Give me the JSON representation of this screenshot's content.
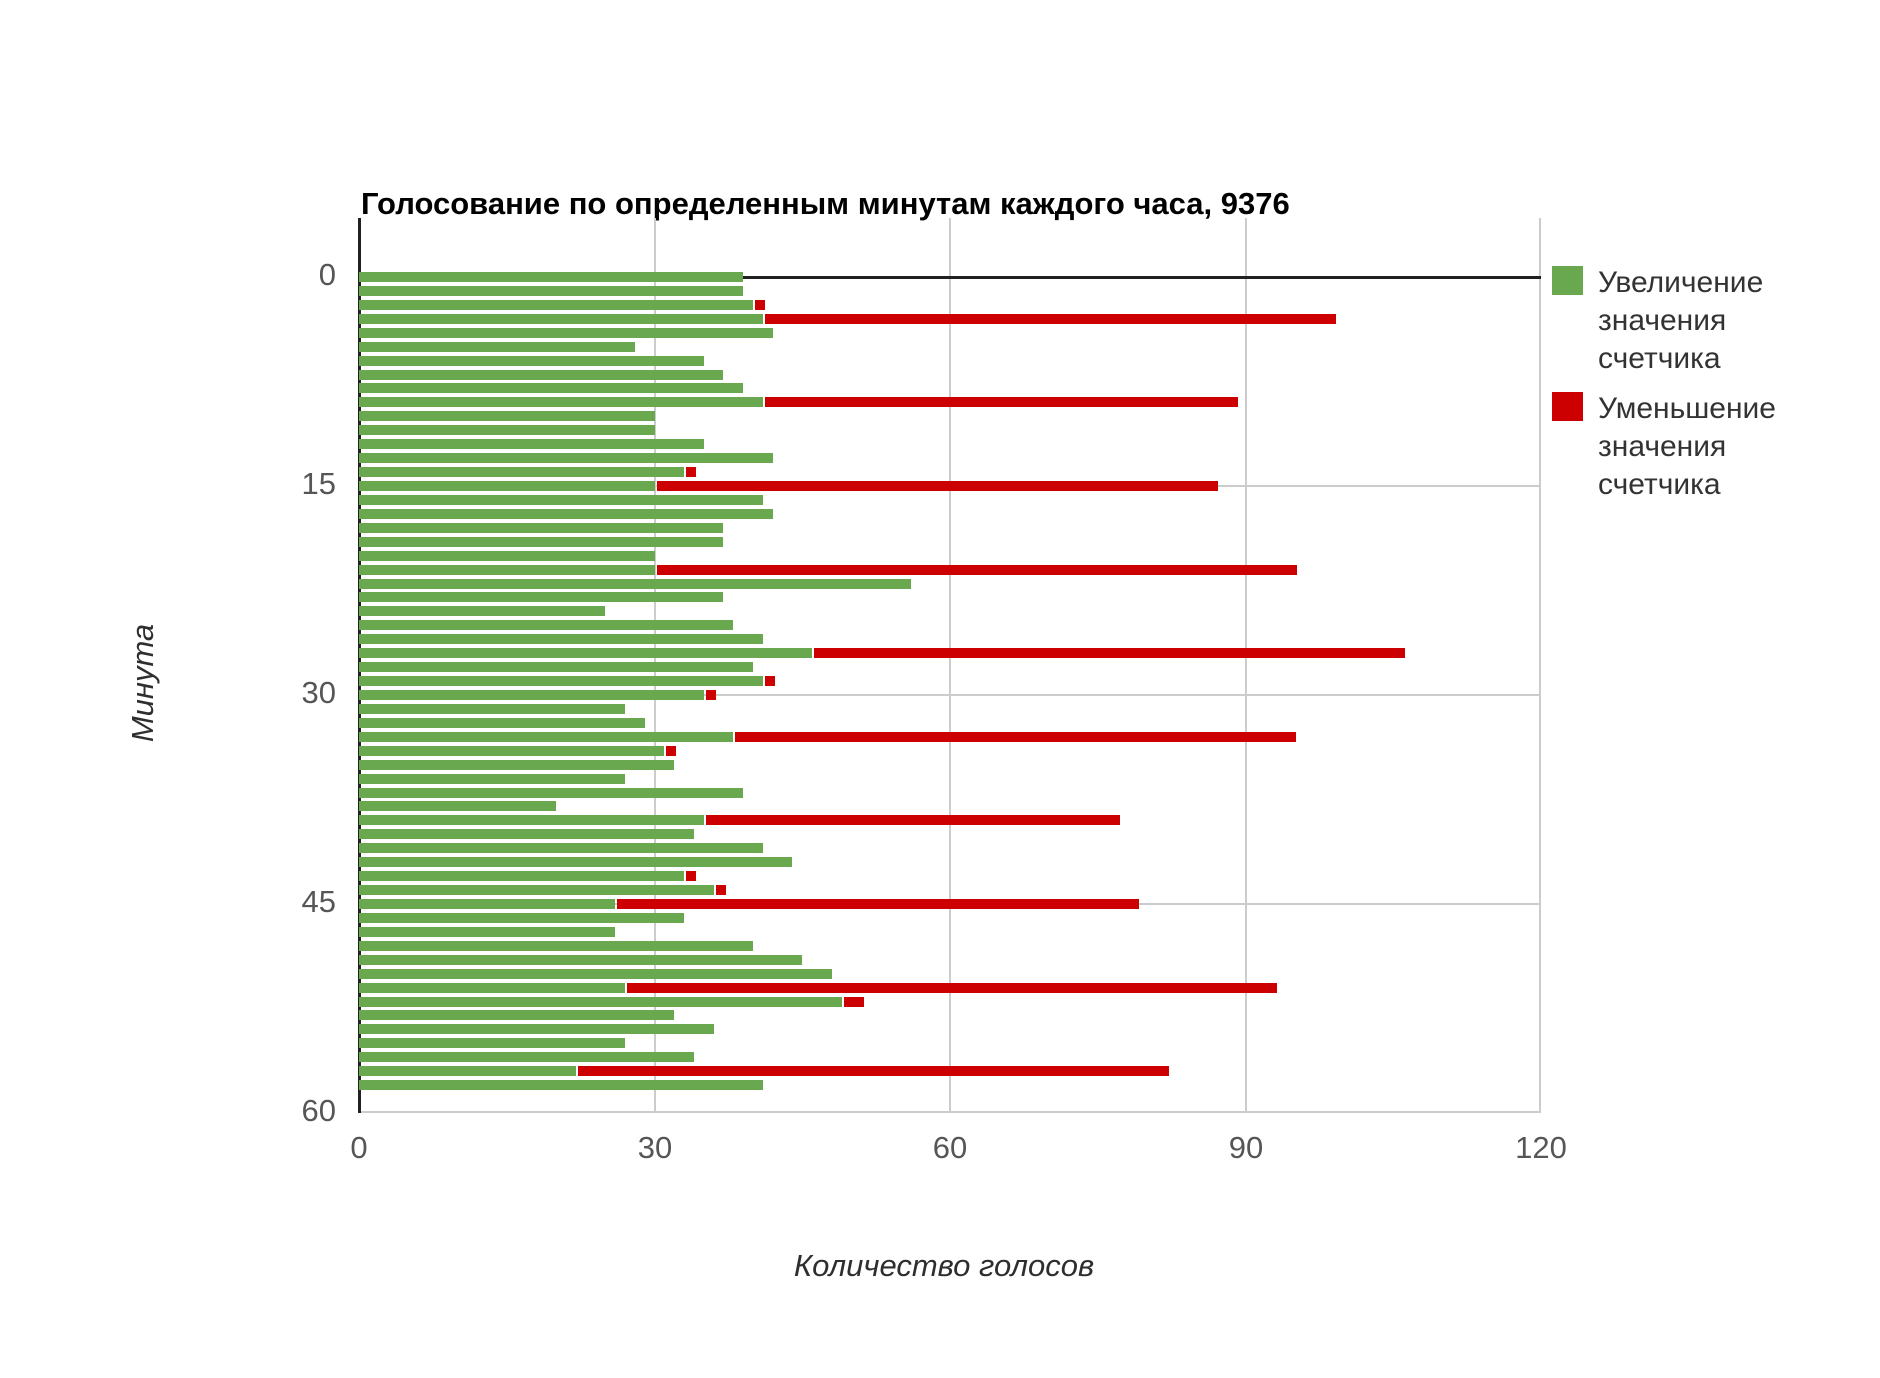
{
  "title": "Голосование по определенным минутам каждого часа, 9376",
  "axes": {
    "x": {
      "title": "Количество голосов",
      "ticks": [
        0,
        30,
        60,
        90,
        120
      ]
    },
    "y": {
      "title": "Минута",
      "ticks": [
        0,
        15,
        30,
        45,
        60
      ]
    }
  },
  "legend": {
    "items": [
      {
        "label": "Увеличение значения счетчика",
        "color": "#6aa84f"
      },
      {
        "label": "Уменьшение значения счетчика",
        "color": "#cc0000"
      }
    ]
  },
  "colors": {
    "up": "#6aa84f",
    "down": "#cc0000",
    "grid": "#cccccc",
    "axis": "#212121",
    "tick_text": "#565656"
  },
  "chart_data": {
    "type": "bar",
    "orientation": "horizontal",
    "stacked": true,
    "grid": true,
    "legend_position": "right",
    "title": "Голосование по определенным минутам каждого часа, 9376",
    "xlabel": "Количество голосов",
    "ylabel": "Минута",
    "xlim": [
      0,
      120
    ],
    "ylim": [
      0,
      60
    ],
    "categories": [
      0,
      1,
      2,
      3,
      4,
      5,
      6,
      7,
      8,
      9,
      10,
      11,
      12,
      13,
      14,
      15,
      16,
      17,
      18,
      19,
      20,
      21,
      22,
      23,
      24,
      25,
      26,
      27,
      28,
      29,
      30,
      31,
      32,
      33,
      34,
      35,
      36,
      37,
      38,
      39,
      40,
      41,
      42,
      43,
      44,
      45,
      46,
      47,
      48,
      49,
      50,
      51,
      52,
      53,
      54,
      55,
      56,
      57,
      58,
      59
    ],
    "series": [
      {
        "name": "Увеличение значения счетчика",
        "color": "#6aa84f",
        "values": [
          39,
          39,
          40,
          41,
          42,
          28,
          35,
          37,
          39,
          41,
          30,
          30,
          35,
          42,
          33,
          30,
          41,
          42,
          37,
          37,
          30,
          30,
          56,
          37,
          25,
          38,
          41,
          46,
          40,
          41,
          35,
          27,
          29,
          38,
          31,
          32,
          27,
          39,
          20,
          35,
          34,
          41,
          44,
          33,
          36,
          26,
          33,
          26,
          40,
          45,
          48,
          27,
          49,
          32,
          36,
          27,
          34,
          22,
          41,
          0
        ]
      },
      {
        "name": "Уменьшение значения счетчика",
        "color": "#cc0000",
        "values": [
          0,
          0,
          1,
          58,
          0,
          0,
          0,
          0,
          0,
          48,
          0,
          0,
          0,
          0,
          1,
          57,
          0,
          0,
          0,
          0,
          0,
          65,
          0,
          0,
          0,
          0,
          0,
          60,
          0,
          1,
          1,
          0,
          0,
          57,
          1,
          0,
          0,
          0,
          0,
          42,
          0,
          0,
          0,
          1,
          1,
          53,
          0,
          0,
          0,
          0,
          0,
          66,
          2,
          0,
          0,
          0,
          0,
          60,
          0,
          0
        ]
      }
    ]
  }
}
